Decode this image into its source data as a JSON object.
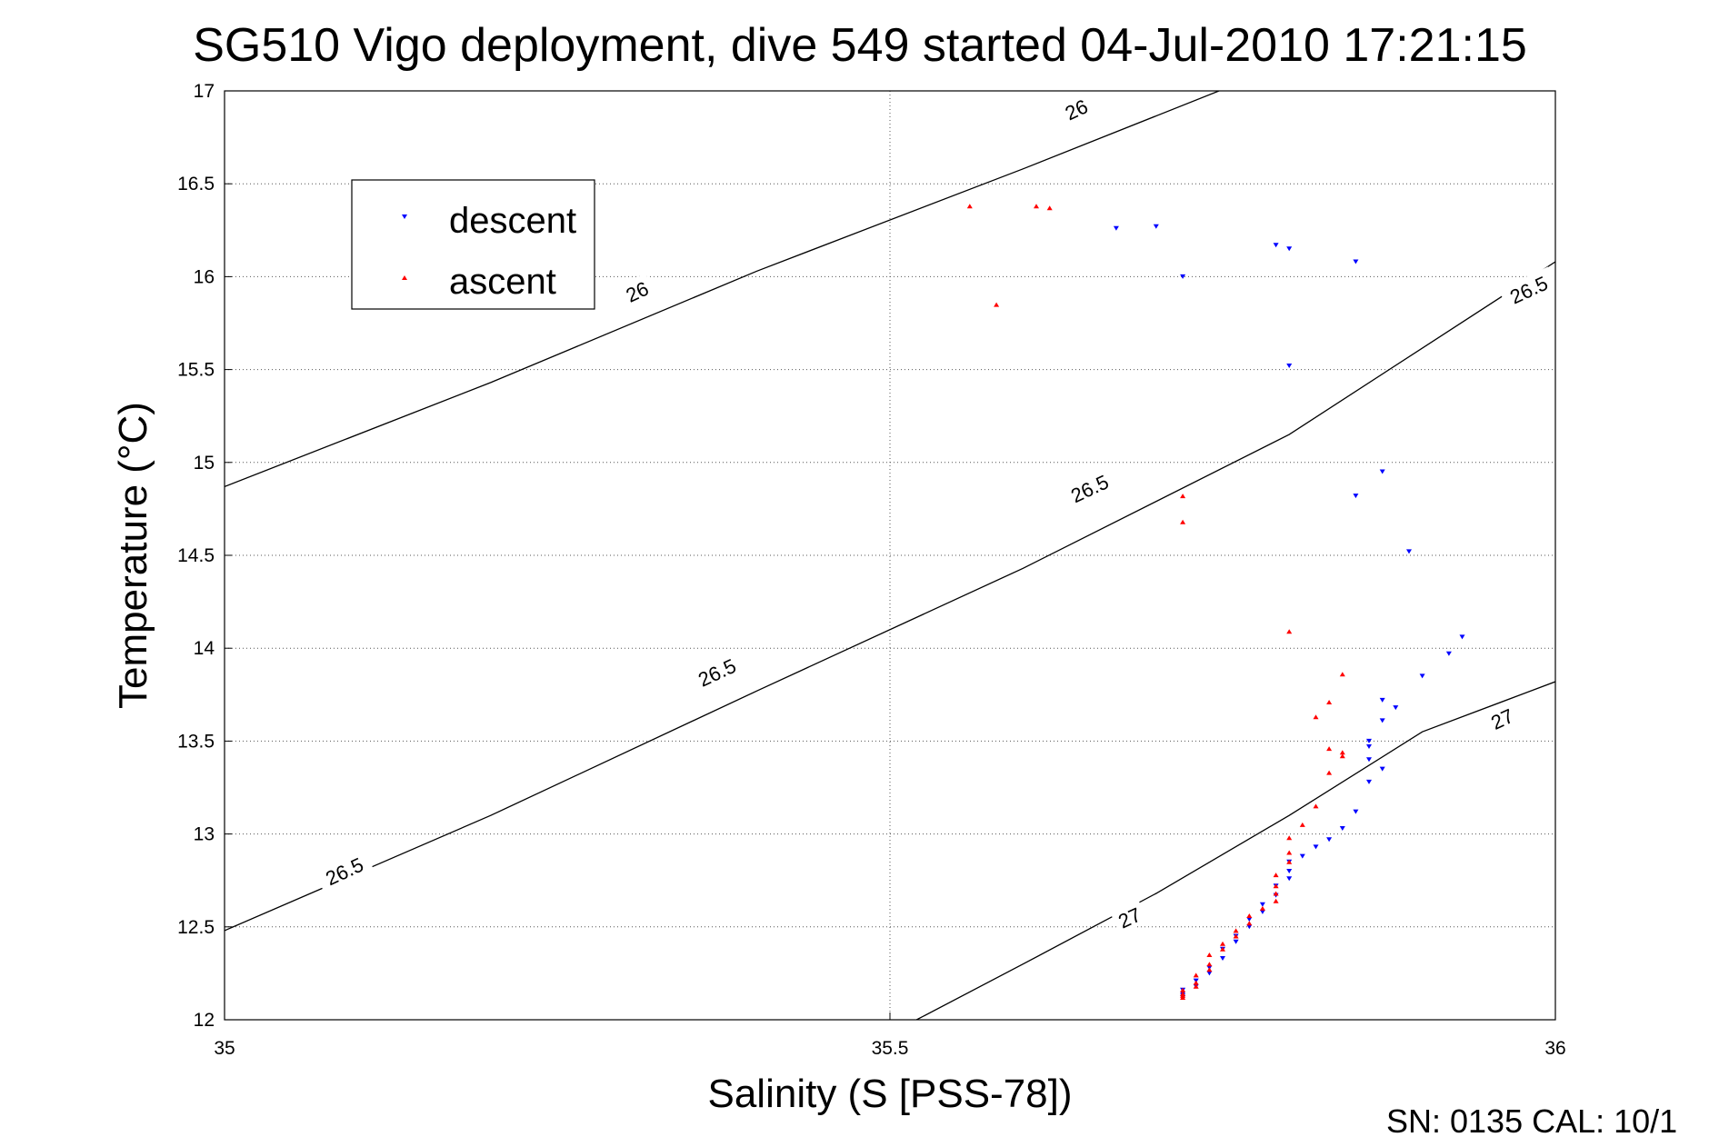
{
  "chart_data": {
    "type": "scatter",
    "title": "SG510 Vigo deployment, dive 549 started 04-Jul-2010 17:21:15",
    "xlabel": "Salinity (S [PSS-78])",
    "ylabel": "Temperature (°C)",
    "xlim": [
      35,
      36
    ],
    "ylim": [
      12,
      17
    ],
    "x_ticks": [
      "35",
      "35.5",
      "36"
    ],
    "y_ticks": [
      "12",
      "12.5",
      "13",
      "13.5",
      "14",
      "14.5",
      "15",
      "15.5",
      "16",
      "16.5",
      "17"
    ],
    "grid": true,
    "legend": {
      "placement": "top-left",
      "entries": [
        "descent",
        "ascent"
      ]
    },
    "colors": {
      "descent": "#0000ff",
      "ascent": "#ff0000",
      "contour": "#000000"
    },
    "density_contours": [
      {
        "label": "26",
        "label_text": "26",
        "points": [
          [
            35.0,
            14.87
          ],
          [
            35.2,
            15.43
          ],
          [
            35.4,
            16.03
          ],
          [
            35.6,
            16.58
          ],
          [
            35.8,
            17.15
          ]
        ]
      },
      {
        "label": "26.5",
        "label_text": "26.5",
        "points": [
          [
            35.0,
            12.48
          ],
          [
            35.2,
            13.1
          ],
          [
            35.4,
            13.77
          ],
          [
            35.6,
            14.43
          ],
          [
            35.8,
            15.15
          ],
          [
            36.0,
            16.08
          ]
        ]
      },
      {
        "label": "27",
        "label_text": "27",
        "points": [
          [
            35.52,
            12.0
          ],
          [
            35.6,
            12.3
          ],
          [
            35.7,
            12.68
          ],
          [
            35.8,
            13.1
          ],
          [
            35.9,
            13.55
          ],
          [
            36.0,
            13.82
          ]
        ]
      }
    ],
    "contour_labels": [
      {
        "text": "26",
        "x": 35.64,
        "y": 16.9
      },
      {
        "text": "26",
        "x": 35.31,
        "y": 15.92
      },
      {
        "text": "26.5",
        "x": 35.98,
        "y": 15.93
      },
      {
        "text": "26.5",
        "x": 35.65,
        "y": 14.86
      },
      {
        "text": "26.5",
        "x": 35.37,
        "y": 13.87
      },
      {
        "text": "26.5",
        "x": 35.09,
        "y": 12.8
      },
      {
        "text": "27",
        "x": 35.96,
        "y": 13.62
      },
      {
        "text": "27",
        "x": 35.68,
        "y": 12.55
      }
    ],
    "series": [
      {
        "name": "descent",
        "marker": "triangle-down",
        "x": [
          35.67,
          35.7,
          35.72,
          35.79,
          35.8,
          35.85,
          35.8,
          35.87,
          35.85,
          35.89,
          35.93,
          35.92,
          35.9,
          35.87,
          35.88,
          35.87,
          35.86,
          35.86,
          35.86,
          35.87,
          35.86,
          35.85,
          35.84,
          35.83,
          35.82,
          35.81,
          35.8,
          35.8,
          35.8,
          35.79,
          35.79,
          35.78,
          35.78,
          35.77,
          35.77,
          35.76,
          35.76,
          35.75,
          35.75,
          35.74,
          35.74,
          35.73,
          35.73,
          35.72,
          35.72,
          35.72,
          35.72
        ],
        "y": [
          16.26,
          16.27,
          16.0,
          16.17,
          16.15,
          16.08,
          15.52,
          14.95,
          14.82,
          14.52,
          14.06,
          13.97,
          13.85,
          13.72,
          13.68,
          13.61,
          13.5,
          13.47,
          13.4,
          13.35,
          13.28,
          13.12,
          13.03,
          12.97,
          12.93,
          12.88,
          12.85,
          12.8,
          12.76,
          12.72,
          12.67,
          12.62,
          12.58,
          12.54,
          12.5,
          12.45,
          12.42,
          12.38,
          12.33,
          12.28,
          12.25,
          12.21,
          12.18,
          12.16,
          12.14,
          12.13,
          12.12
        ]
      },
      {
        "name": "ascent",
        "marker": "triangle-up",
        "x": [
          35.56,
          35.61,
          35.62,
          35.58,
          35.72,
          35.72,
          35.8,
          35.84,
          35.83,
          35.82,
          35.83,
          35.84,
          35.84,
          35.83,
          35.82,
          35.81,
          35.8,
          35.8,
          35.8,
          35.79,
          35.79,
          35.79,
          35.79,
          35.78,
          35.77,
          35.77,
          35.76,
          35.76,
          35.75,
          35.75,
          35.74,
          35.74,
          35.74,
          35.73,
          35.73,
          35.73,
          35.72,
          35.72,
          35.72,
          35.72
        ],
        "y": [
          16.38,
          16.38,
          16.37,
          15.85,
          14.82,
          14.68,
          14.09,
          13.86,
          13.71,
          13.63,
          13.46,
          13.44,
          13.42,
          13.33,
          13.15,
          13.05,
          12.98,
          12.9,
          12.85,
          12.78,
          12.72,
          12.68,
          12.64,
          12.6,
          12.56,
          12.52,
          12.48,
          12.45,
          12.41,
          12.38,
          12.35,
          12.3,
          12.27,
          12.24,
          12.2,
          12.18,
          12.16,
          12.14,
          12.13,
          12.12
        ]
      }
    ],
    "footer": "SN: 0135  CAL: 10/1"
  }
}
